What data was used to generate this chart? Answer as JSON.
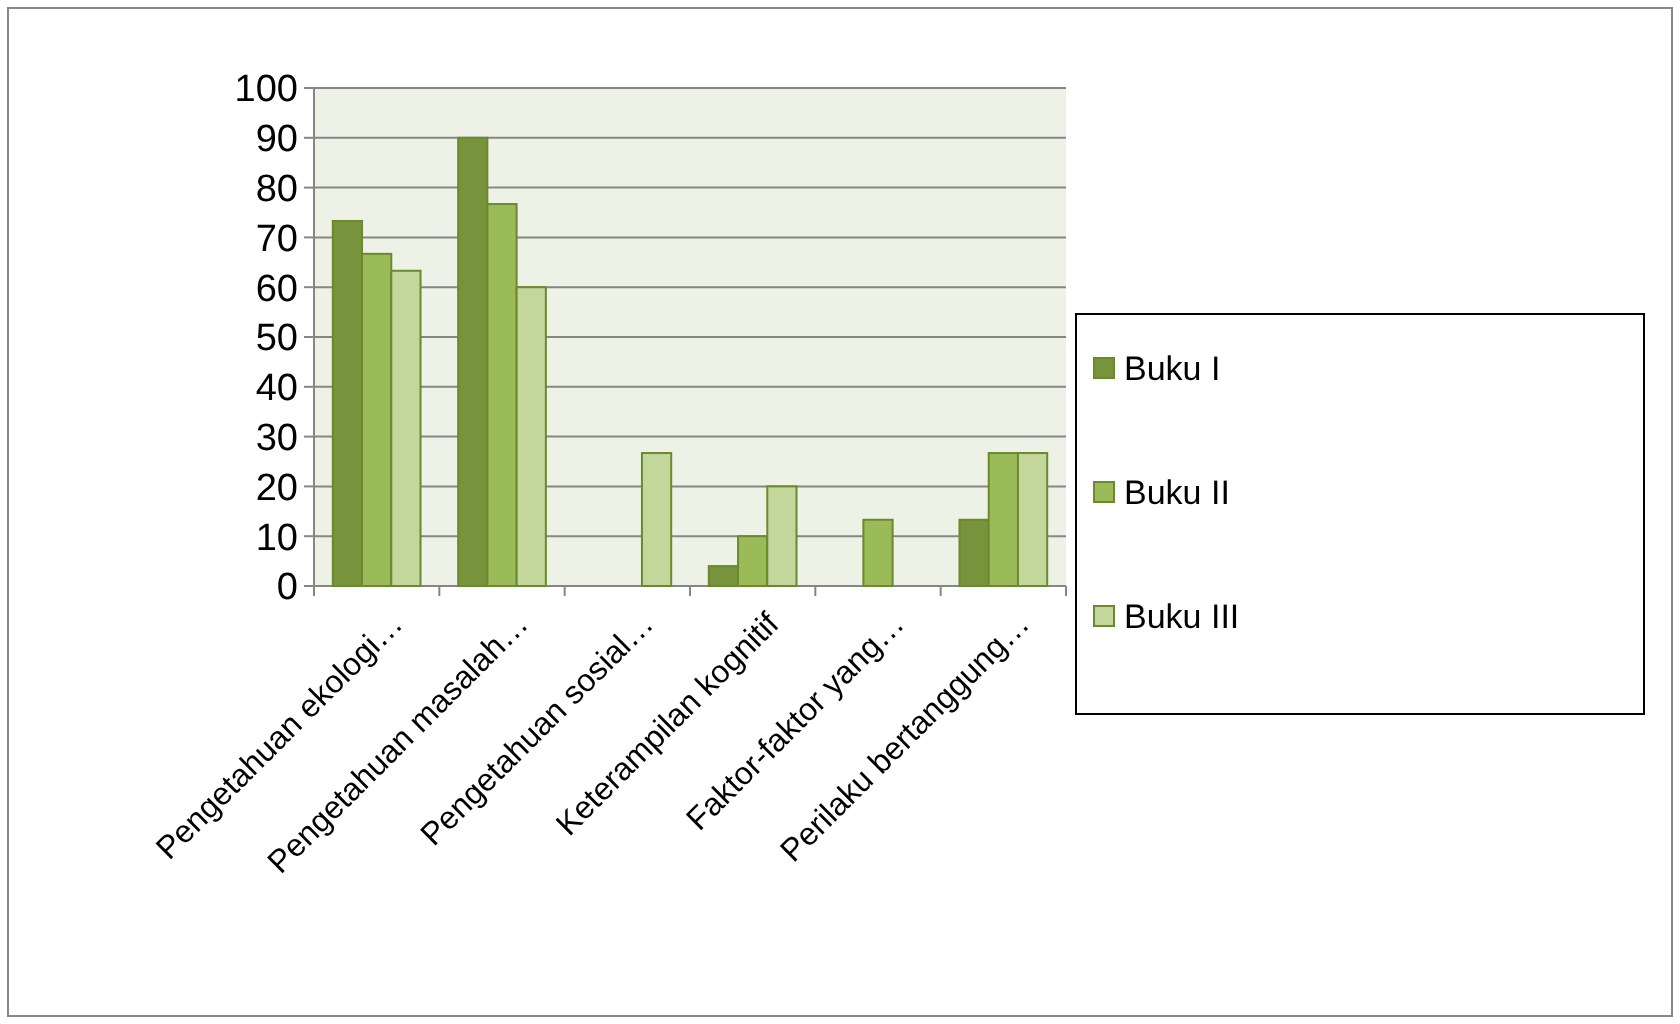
{
  "chart_data": {
    "type": "bar",
    "categories": [
      "Pengetahuan ekologi…",
      "Pengetahuan masalah…",
      "Pengetahuan sosial…",
      "Keterampilan kognitif",
      "Faktor-faktor yang…",
      "Perilaku bertanggung…"
    ],
    "series": [
      {
        "name": "Buku I",
        "color": "#77933c",
        "values": [
          73.3,
          90,
          0,
          4,
          0,
          13.3
        ]
      },
      {
        "name": "Buku II",
        "color": "#9bbb59",
        "values": [
          66.7,
          76.7,
          0,
          10,
          13.3,
          26.7
        ]
      },
      {
        "name": "Buku III",
        "color": "#c3d69b",
        "values": [
          63.3,
          60,
          26.7,
          20,
          0,
          26.7
        ]
      }
    ],
    "ylim": [
      0,
      100
    ],
    "yticks": [
      0,
      10,
      20,
      30,
      40,
      50,
      60,
      70,
      80,
      90,
      100
    ],
    "grid": "y",
    "legend": "right"
  }
}
